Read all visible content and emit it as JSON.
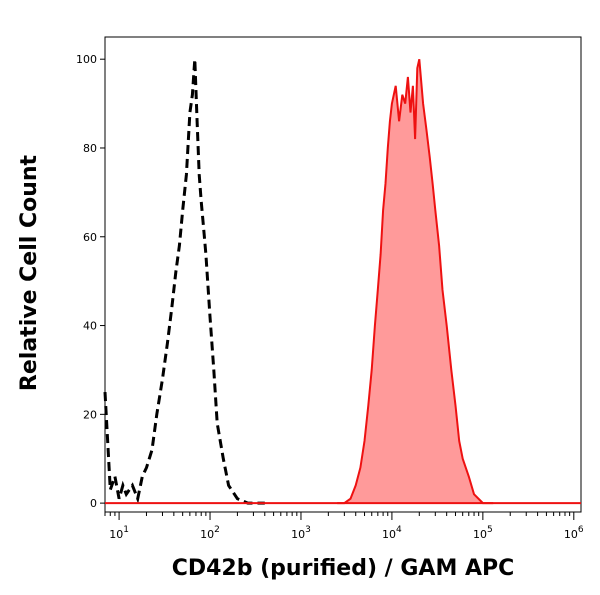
{
  "chart_data": {
    "type": "area",
    "title": "",
    "xlabel": "CD42b (purified) / GAM APC",
    "ylabel": "Relative Cell Count",
    "x_scale": "log",
    "xlim": [
      7,
      1200000
    ],
    "ylim": [
      -2,
      105
    ],
    "grid": false,
    "x_ticks": [
      {
        "value": 10,
        "base": "10",
        "exp": "1"
      },
      {
        "value": 100,
        "base": "10",
        "exp": "2"
      },
      {
        "value": 1000,
        "base": "10",
        "exp": "3"
      },
      {
        "value": 10000,
        "base": "10",
        "exp": "4"
      },
      {
        "value": 100000,
        "base": "10",
        "exp": "5"
      },
      {
        "value": 1000000,
        "base": "10",
        "exp": "6"
      }
    ],
    "y_ticks": [
      0,
      20,
      40,
      60,
      80,
      100
    ],
    "series": [
      {
        "style": "dashed",
        "line_color": "#000000",
        "x": [
          7,
          8,
          9,
          10,
          11,
          12,
          14,
          16,
          18,
          20,
          23,
          26,
          30,
          34,
          38,
          42,
          46,
          50,
          55,
          60,
          64,
          68,
          72,
          76,
          80,
          85,
          90,
          100,
          110,
          120,
          140,
          160,
          200,
          260,
          400
        ],
        "y": [
          25,
          3,
          6,
          1,
          4,
          2,
          4,
          1,
          6,
          8,
          12,
          20,
          28,
          36,
          44,
          52,
          58,
          66,
          74,
          88,
          92,
          100,
          86,
          74,
          68,
          62,
          56,
          42,
          30,
          18,
          10,
          4,
          1,
          0,
          0
        ]
      },
      {
        "style": "filled",
        "line_color": "#ee1111",
        "fill_color": "#ff9a9a",
        "x": [
          2500,
          3000,
          3500,
          4000,
          4500,
          5000,
          5500,
          6000,
          6500,
          7000,
          7500,
          8000,
          8500,
          9000,
          9500,
          10000,
          11000,
          12000,
          13000,
          14000,
          15000,
          16000,
          17000,
          18000,
          19000,
          20000,
          22000,
          24000,
          26000,
          28000,
          30000,
          33000,
          36000,
          40000,
          45000,
          50000,
          55000,
          60000,
          70000,
          80000,
          100000,
          130000
        ],
        "y": [
          0,
          0,
          1,
          4,
          8,
          14,
          22,
          30,
          40,
          48,
          56,
          66,
          72,
          80,
          86,
          90,
          94,
          86,
          92,
          90,
          96,
          88,
          94,
          82,
          98,
          100,
          90,
          84,
          78,
          72,
          66,
          58,
          48,
          40,
          30,
          22,
          14,
          10,
          6,
          2,
          0,
          0
        ]
      }
    ]
  }
}
